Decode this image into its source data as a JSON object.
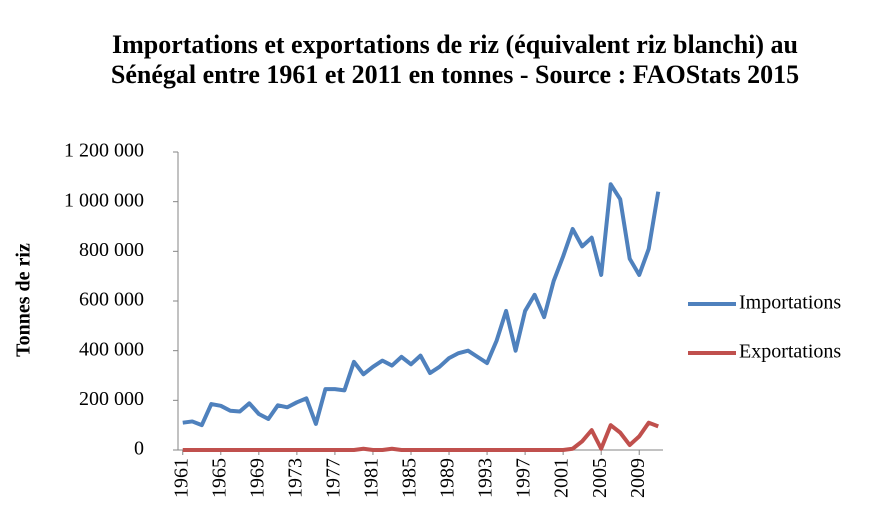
{
  "chart_data": {
    "type": "line",
    "title": "Importations et exportations de riz (équivalent riz blanchi) au Sénégal entre 1961 et 2011 en tonnes - Source : FAOStats 2015",
    "ylabel": "Tonnes de riz",
    "x": [
      1961,
      1962,
      1963,
      1964,
      1965,
      1966,
      1967,
      1968,
      1969,
      1970,
      1971,
      1972,
      1973,
      1974,
      1975,
      1976,
      1977,
      1978,
      1979,
      1980,
      1981,
      1982,
      1983,
      1984,
      1985,
      1986,
      1987,
      1988,
      1989,
      1990,
      1991,
      1992,
      1993,
      1994,
      1995,
      1996,
      1997,
      1998,
      1999,
      2000,
      2001,
      2002,
      2003,
      2004,
      2005,
      2006,
      2007,
      2008,
      2009,
      2010,
      2011
    ],
    "xlim": [
      1960.5,
      2011.5
    ],
    "xticks": [
      1961,
      1965,
      1969,
      1973,
      1977,
      1981,
      1985,
      1989,
      1993,
      1997,
      2001,
      2005,
      2009
    ],
    "ylim": [
      0,
      1200000
    ],
    "yticks": [
      0,
      {
        "value": 200000,
        "label": "200 000"
      },
      {
        "value": 400000,
        "label": "400 000"
      },
      {
        "value": 600000,
        "label": "600 000"
      },
      {
        "value": 800000,
        "label": "800 000"
      },
      {
        "value": 1000000,
        "label": "1 000 000"
      },
      {
        "value": 1200000,
        "label": "1 200 000"
      }
    ],
    "grid": false,
    "legend": "right",
    "series": [
      {
        "name": "Importations",
        "color": "#4f81bd",
        "values": [
          110000,
          115000,
          100000,
          185000,
          178000,
          158000,
          155000,
          188000,
          145000,
          125000,
          180000,
          172000,
          192000,
          208000,
          105000,
          245000,
          245000,
          240000,
          355000,
          305000,
          335000,
          360000,
          340000,
          375000,
          345000,
          380000,
          310000,
          335000,
          370000,
          390000,
          400000,
          375000,
          350000,
          440000,
          560000,
          400000,
          560000,
          625000,
          535000,
          680000,
          780000,
          890000,
          820000,
          855000,
          705000,
          1070000,
          1010000,
          770000,
          705000,
          810000,
          1040000
        ]
      },
      {
        "name": "Exportations",
        "color": "#c0504d",
        "values": [
          0,
          0,
          0,
          0,
          0,
          0,
          0,
          0,
          0,
          0,
          0,
          0,
          0,
          0,
          0,
          0,
          0,
          0,
          0,
          5000,
          0,
          0,
          5000,
          0,
          0,
          0,
          0,
          0,
          0,
          0,
          0,
          0,
          0,
          0,
          0,
          0,
          0,
          0,
          0,
          0,
          0,
          5000,
          35000,
          80000,
          5000,
          100000,
          70000,
          20000,
          55000,
          110000,
          95000
        ]
      }
    ]
  }
}
